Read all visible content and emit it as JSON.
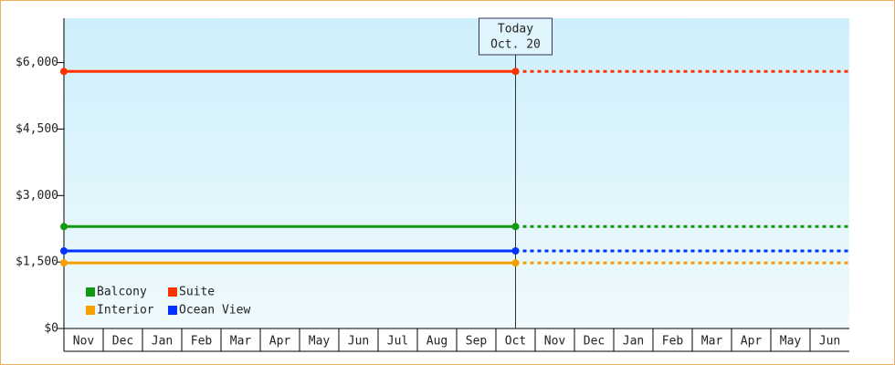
{
  "chart_data": {
    "type": "line",
    "categories": [
      "Nov",
      "Dec",
      "Jan",
      "Feb",
      "Mar",
      "Apr",
      "May",
      "Jun",
      "Jul",
      "Aug",
      "Sep",
      "Oct",
      "Nov",
      "Dec",
      "Jan",
      "Feb",
      "Mar",
      "Apr",
      "May",
      "Jun"
    ],
    "series": [
      {
        "name": "Balcony",
        "color": "#119911",
        "value": 2300
      },
      {
        "name": "Suite",
        "color": "#ff3300",
        "value": 5800
      },
      {
        "name": "Interior",
        "color": "#f5a000",
        "value": 1480
      },
      {
        "name": "Ocean View",
        "color": "#0033ff",
        "value": 1750
      }
    ],
    "annotation": {
      "title": "Today",
      "date": "Oct. 20",
      "category": "Oct"
    },
    "ylim": [
      0,
      7000
    ],
    "yticks": [
      {
        "value": 0,
        "label": "$0"
      },
      {
        "value": 1500,
        "label": "$1,500"
      },
      {
        "value": 3000,
        "label": "$3,000"
      },
      {
        "value": 4500,
        "label": "$4,500"
      },
      {
        "value": 6000,
        "label": "$6,000"
      }
    ],
    "legend": "lower left"
  }
}
